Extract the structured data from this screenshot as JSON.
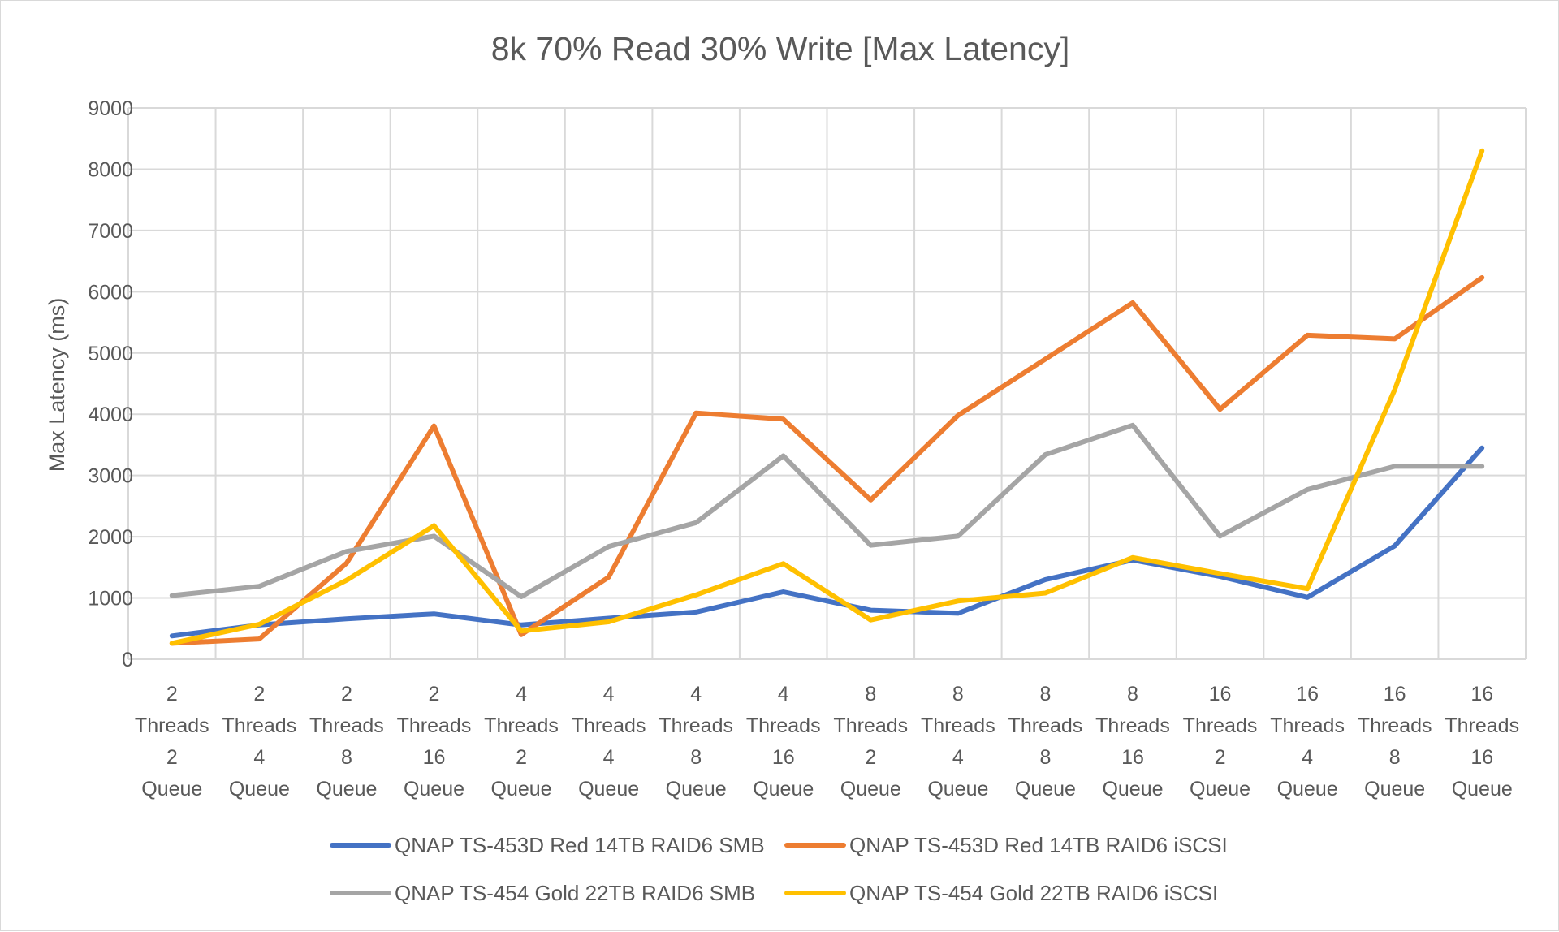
{
  "chart_data": {
    "type": "line",
    "title": "8k 70% Read 30% Write [Max Latency]",
    "xlabel": "",
    "ylabel": "Max Latency (ms)",
    "ylim": [
      0,
      9000
    ],
    "yticks": [
      0,
      1000,
      2000,
      3000,
      4000,
      5000,
      6000,
      7000,
      8000,
      9000
    ],
    "grid": true,
    "legend_position": "bottom",
    "categories": [
      [
        "2",
        "Threads",
        "2",
        "Queue"
      ],
      [
        "2",
        "Threads",
        "4",
        "Queue"
      ],
      [
        "2",
        "Threads",
        "8",
        "Queue"
      ],
      [
        "2",
        "Threads",
        "16",
        "Queue"
      ],
      [
        "4",
        "Threads",
        "2",
        "Queue"
      ],
      [
        "4",
        "Threads",
        "4",
        "Queue"
      ],
      [
        "4",
        "Threads",
        "8",
        "Queue"
      ],
      [
        "4",
        "Threads",
        "16",
        "Queue"
      ],
      [
        "8",
        "Threads",
        "2",
        "Queue"
      ],
      [
        "8",
        "Threads",
        "4",
        "Queue"
      ],
      [
        "8",
        "Threads",
        "8",
        "Queue"
      ],
      [
        "8",
        "Threads",
        "16",
        "Queue"
      ],
      [
        "16",
        "Threads",
        "2",
        "Queue"
      ],
      [
        "16",
        "Threads",
        "4",
        "Queue"
      ],
      [
        "16",
        "Threads",
        "8",
        "Queue"
      ],
      [
        "16",
        "Threads",
        "16",
        "Queue"
      ]
    ],
    "series": [
      {
        "name": "QNAP TS-453D Red 14TB RAID6 SMB",
        "color": "#4472c4",
        "values": [
          380,
          560,
          660,
          740,
          560,
          670,
          770,
          1100,
          800,
          750,
          1300,
          1620,
          1350,
          1010,
          1850,
          3450
        ]
      },
      {
        "name": "QNAP TS-453D Red 14TB RAID6 iSCSI",
        "color": "#ed7d31",
        "values": [
          260,
          330,
          1570,
          3810,
          400,
          1340,
          4020,
          3920,
          2600,
          3980,
          4900,
          5820,
          4080,
          5290,
          5230,
          6230
        ]
      },
      {
        "name": "QNAP TS-454 Gold 22TB RAID6 SMB",
        "color": "#a5a5a5",
        "values": [
          1040,
          1190,
          1760,
          2010,
          1020,
          1840,
          2230,
          3320,
          1860,
          2010,
          3340,
          3820,
          2010,
          2770,
          3150,
          3150
        ]
      },
      {
        "name": "QNAP TS-454 Gold 22TB RAID6 iSCSI",
        "color": "#ffc000",
        "values": [
          260,
          570,
          1290,
          2180,
          460,
          610,
          1050,
          1560,
          640,
          950,
          1080,
          1660,
          1400,
          1150,
          4400,
          8300
        ]
      }
    ]
  }
}
